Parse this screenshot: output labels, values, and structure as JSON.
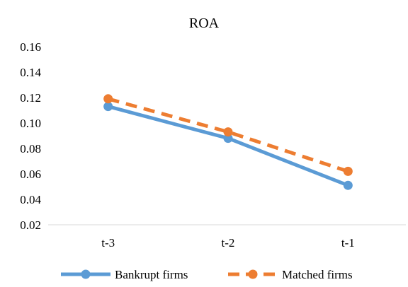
{
  "chart_data": {
    "type": "line",
    "title": "ROA",
    "categories": [
      "t-3",
      "t-2",
      "t-1"
    ],
    "ylim": [
      0.02,
      0.16
    ],
    "yticks": [
      "0.02",
      "0.04",
      "0.06",
      "0.08",
      "0.10",
      "0.12",
      "0.14",
      "0.16"
    ],
    "grid": false,
    "legend_position": "bottom",
    "series": [
      {
        "name": "Bankrupt firms",
        "values": [
          0.113,
          0.088,
          0.051
        ],
        "color": "#5B9BD5",
        "style": "solid"
      },
      {
        "name": "Matched firms",
        "values": [
          0.119,
          0.093,
          0.062
        ],
        "color": "#ED7D31",
        "style": "dashed"
      }
    ]
  }
}
